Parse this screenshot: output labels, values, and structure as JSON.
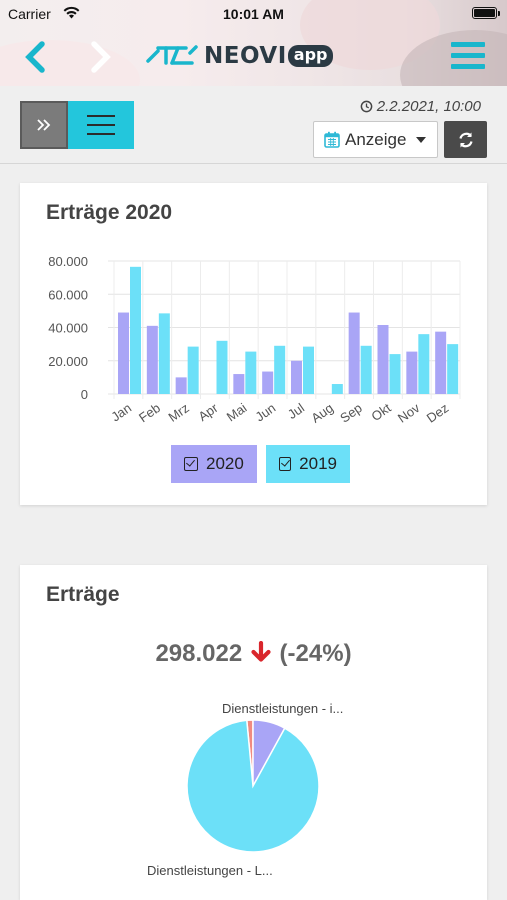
{
  "status": {
    "carrier": "Carrier",
    "time": "10:01 AM"
  },
  "header": {
    "logo_text": "NEOVI",
    "logo_badge": "app"
  },
  "toolbar": {
    "date": "2.2.2021, 10:00",
    "view_label": "Anzeige"
  },
  "card1": {
    "title": "Erträge 2020",
    "legend": [
      "2020",
      "2019"
    ]
  },
  "chart_data": {
    "type": "bar",
    "categories": [
      "Jan",
      "Feb",
      "Mrz",
      "Apr",
      "Mai",
      "Jun",
      "Jul",
      "Aug",
      "Sep",
      "Okt",
      "Nov",
      "Dez"
    ],
    "series": [
      {
        "name": "2020",
        "color": "#a9a5f6",
        "values": [
          49000,
          41000,
          10000,
          0,
          12000,
          13500,
          20000,
          0,
          49000,
          41500,
          25500,
          37500
        ]
      },
      {
        "name": "2019",
        "color": "#6ce0f8",
        "values": [
          76500,
          48500,
          28500,
          32000,
          25500,
          29000,
          28500,
          6000,
          29000,
          24000,
          36000,
          30000
        ]
      }
    ],
    "ylim": [
      0,
      80000
    ],
    "yticks": [
      "0",
      "20.000",
      "40.000",
      "60.000",
      "80.000"
    ]
  },
  "card2": {
    "title": "Erträge",
    "total": "298.022",
    "change": "(-24%)",
    "pie": {
      "type": "pie",
      "slices": [
        {
          "label": "Dienstleistungen - L...",
          "value": 90.5,
          "color": "#6ce0f8"
        },
        {
          "label": "Dienstleistungen - i...",
          "value": 8,
          "color": "#a9a5f6"
        },
        {
          "label": "",
          "value": 1.5,
          "color": "#f08a80"
        }
      ]
    }
  }
}
